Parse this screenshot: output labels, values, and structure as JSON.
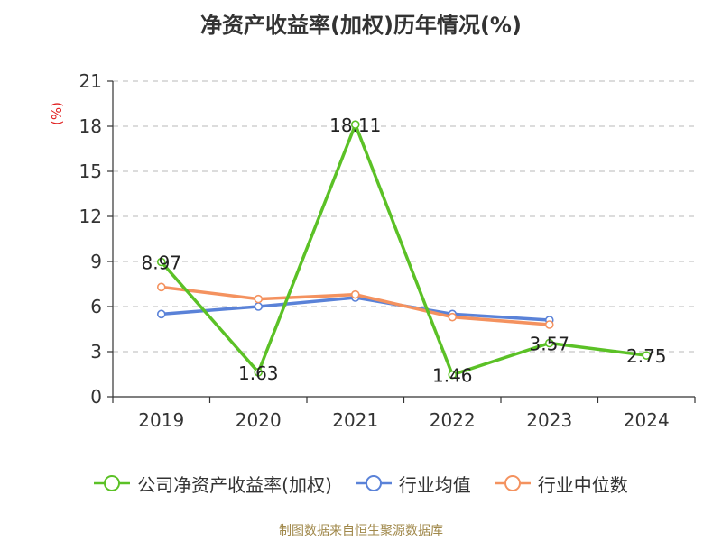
{
  "chart_data": {
    "type": "line",
    "title": "净资产收益率(加权)历年情况(%)",
    "ylabel": "(%)",
    "categories": [
      "2019",
      "2020",
      "2021",
      "2022",
      "2023",
      "2024"
    ],
    "ylim": [
      0,
      21
    ],
    "yticks": [
      0,
      3,
      6,
      9,
      12,
      15,
      18,
      21
    ],
    "grid": true,
    "legend_position": "bottom",
    "series": [
      {
        "name": "公司净资产收益率(加权)",
        "color": "#5bc126",
        "values": [
          8.97,
          1.63,
          18.11,
          1.46,
          3.57,
          2.75
        ],
        "labels": [
          "8.97",
          "1.63",
          "18.11",
          "1.46",
          "3.57",
          "2.75"
        ]
      },
      {
        "name": "行业均值",
        "color": "#5a82d8",
        "values": [
          5.5,
          6.0,
          6.6,
          5.5,
          5.1,
          null
        ]
      },
      {
        "name": "行业中位数",
        "color": "#f4925f",
        "values": [
          7.3,
          6.5,
          6.8,
          5.3,
          4.8,
          null
        ]
      }
    ]
  },
  "footer": "制图数据来自恒生聚源数据库"
}
